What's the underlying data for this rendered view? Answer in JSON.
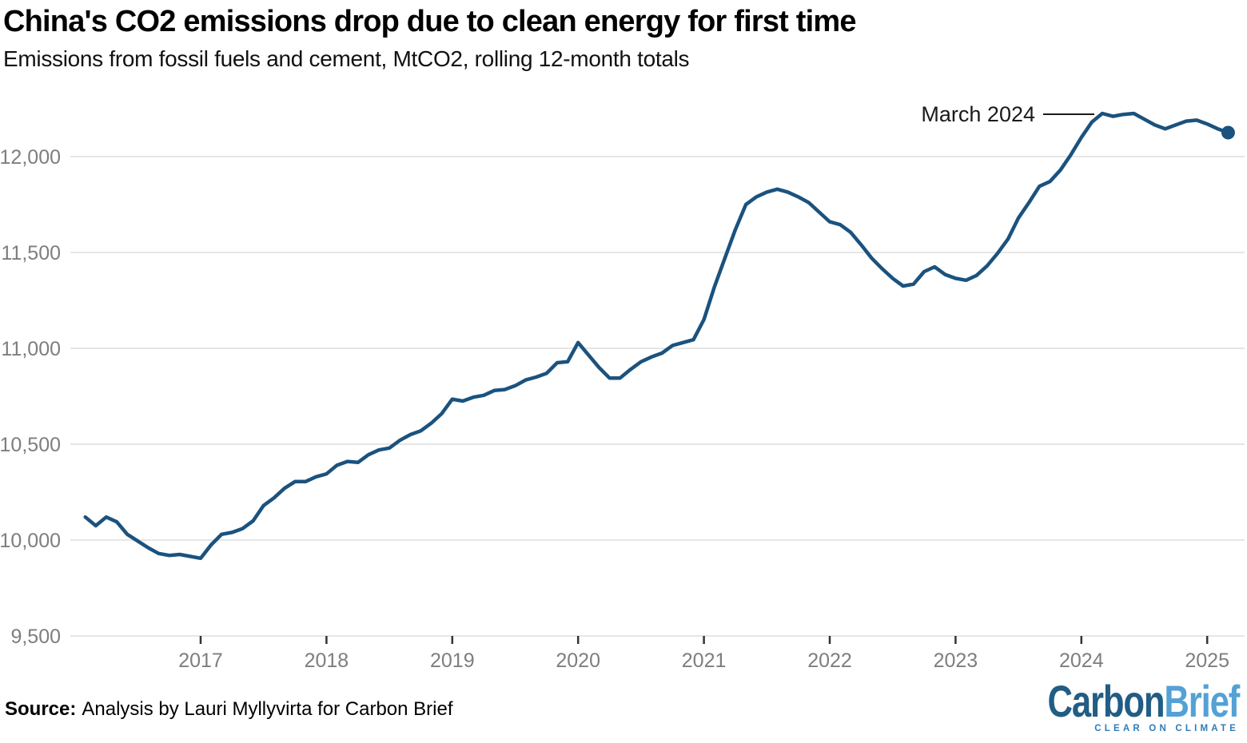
{
  "colors": {
    "line": "#1b527e",
    "grid": "#e6e6e6",
    "tick": "#333333",
    "axis-text": "#7e7e7e",
    "annotation": "#1a1a1a",
    "logo-dark": "#215d84",
    "logo-light": "#54a1d5",
    "logo-tagline": "#2f7cb5"
  },
  "header": {
    "title": "China's CO2 emissions drop due to clean energy for first time",
    "subtitle": "Emissions from fossil fuels and cement, MtCO2, rolling 12-month totals"
  },
  "footer": {
    "source_label": "Source:",
    "source_text": "Analysis by Lauri Myllyvirta for Carbon Brief",
    "logo": {
      "part1": "Carbon",
      "part2": "Brief",
      "tagline": "CLEAR ON CLIMATE"
    }
  },
  "chart_data": {
    "type": "line",
    "title": "China's CO2 emissions drop due to clean energy for first time",
    "subtitle": "Emissions from fossil fuels and cement, MtCO2, rolling 12-month totals",
    "unit": "MtCO2",
    "grid": "horizontal",
    "legend_position": "none",
    "ylim": [
      9500,
      12350
    ],
    "yticks": [
      9500,
      10000,
      10500,
      11000,
      11500,
      12000
    ],
    "ytick_labels": [
      "9,500",
      "10,000",
      "10,500",
      "11,000",
      "11,500",
      "12,000"
    ],
    "xticks": [
      2017,
      2018,
      2019,
      2020,
      2021,
      2022,
      2023,
      2024,
      2025
    ],
    "annotation": {
      "label": "March 2024",
      "year": 2024,
      "month": 3,
      "value": 12225
    },
    "last_point_marker": true,
    "series": [
      {
        "name": "China CO2 emissions, rolling 12-month total (MtCO2)",
        "start": {
          "year": 2016,
          "month": 2
        },
        "frequency": "monthly",
        "values": [
          10120,
          10075,
          10120,
          10095,
          10030,
          9995,
          9960,
          9930,
          9920,
          9925,
          9915,
          9905,
          9975,
          10030,
          10040,
          10060,
          10100,
          10180,
          10220,
          10270,
          10305,
          10305,
          10330,
          10345,
          10390,
          10410,
          10405,
          10445,
          10470,
          10480,
          10520,
          10550,
          10570,
          10610,
          10660,
          10735,
          10725,
          10745,
          10755,
          10780,
          10785,
          10805,
          10835,
          10850,
          10870,
          10925,
          10930,
          11030,
          10965,
          10900,
          10845,
          10845,
          10890,
          10930,
          10955,
          10975,
          11015,
          11030,
          11045,
          11150,
          11320,
          11470,
          11620,
          11750,
          11790,
          11815,
          11830,
          11815,
          11790,
          11760,
          11710,
          11660,
          11645,
          11605,
          11540,
          11470,
          11415,
          11365,
          11325,
          11335,
          11400,
          11425,
          11385,
          11365,
          11355,
          11380,
          11430,
          11495,
          11570,
          11680,
          11760,
          11845,
          11870,
          11930,
          12010,
          12100,
          12180,
          12225,
          12210,
          12220,
          12225,
          12195,
          12165,
          12145,
          12165,
          12185,
          12190,
          12170,
          12145,
          12125
        ]
      }
    ]
  }
}
